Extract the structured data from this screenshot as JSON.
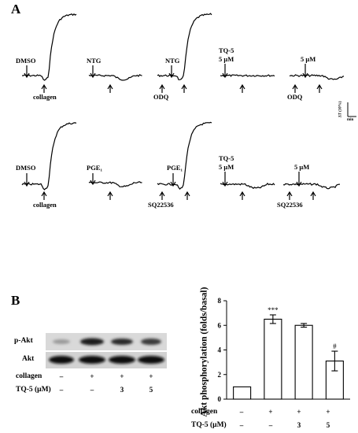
{
  "figure": {
    "panel_a": {
      "letter": "A",
      "row1": {
        "trace1": {
          "drug_label": "DMSO",
          "agonist_label": "collagen"
        },
        "trace2": {
          "drug_label": "NTG"
        },
        "trace3": {
          "drug_label": "NTG",
          "inhibitor_label": "ODQ"
        },
        "trace4": {
          "drug_label_line1": "TQ-5",
          "drug_label_line2": "5 μM"
        },
        "trace5": {
          "drug_label": "5 μM",
          "inhibitor_label": "ODQ"
        }
      },
      "row2": {
        "trace1": {
          "drug_label": "DMSO",
          "agonist_label": "collagen"
        },
        "trace2": {
          "drug_label": "PGE₁"
        },
        "trace3": {
          "drug_label": "PGE₁",
          "inhibitor_label": "SQ22536"
        },
        "trace4": {
          "drug_label_line1": "TQ-5",
          "drug_label_line2": "5 μM"
        },
        "trace5": {
          "drug_label": "5 μM",
          "inhibitor_label": "SQ22536"
        }
      },
      "scale_bar": {
        "y_label": "ΔT (10%)",
        "x_label": "min"
      }
    },
    "panel_b": {
      "letter": "B",
      "blot": {
        "rows": [
          "p-Akt",
          "Akt"
        ],
        "treatment_rows": [
          {
            "label": "collagen",
            "values": [
              "–",
              "+",
              "+",
              "+"
            ]
          },
          {
            "label": "TQ-5 (μM)",
            "values": [
              "–",
              "–",
              "3",
              "5"
            ]
          }
        ]
      }
    }
  },
  "chart_data": {
    "type": "bar",
    "ylabel": "Akt phosphorylation (folds/basal)",
    "ylim": [
      0,
      8
    ],
    "yticks": [
      0,
      2,
      4,
      6,
      8
    ],
    "categories": [
      "basal",
      "collagen",
      "collagen + TQ-5 3 μM",
      "collagen + TQ-5 5 μM"
    ],
    "values": [
      1.0,
      6.5,
      6.0,
      3.1
    ],
    "errors": [
      0,
      0.35,
      0.15,
      0.8
    ],
    "significance": [
      "",
      "***",
      "",
      "#"
    ],
    "treatment_rows": [
      {
        "label": "collagen",
        "values": [
          "–",
          "+",
          "+",
          "+"
        ]
      },
      {
        "label": "TQ-5 (μM)",
        "values": [
          "–",
          "–",
          "3",
          "5"
        ]
      }
    ],
    "fill": "#ffffff"
  }
}
